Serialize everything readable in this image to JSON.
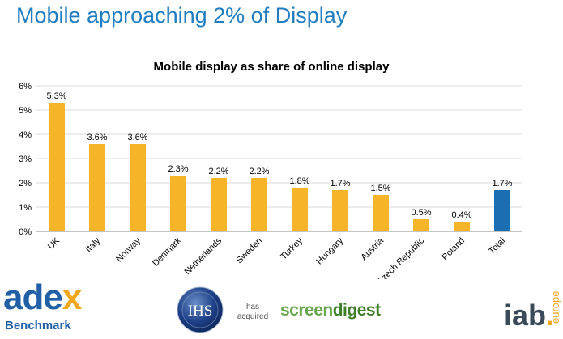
{
  "slide": {
    "title": "Mobile approaching 2% of Display"
  },
  "chart_data": {
    "type": "bar",
    "title": "Mobile display as share of online display",
    "categories": [
      "UK",
      "Italy",
      "Norway",
      "Denmark",
      "Netherlands",
      "Sweden",
      "Turkey",
      "Hungary",
      "Austria",
      "Czech Republic",
      "Poland",
      "Total"
    ],
    "values": [
      5.3,
      3.6,
      3.6,
      2.3,
      2.2,
      2.2,
      1.8,
      1.7,
      1.5,
      0.5,
      0.4,
      1.7
    ],
    "data_labels": [
      "5.3%",
      "3.6%",
      "3.6%",
      "2.3%",
      "2.2%",
      "2.2%",
      "1.8%",
      "1.7%",
      "1.5%",
      "0.5%",
      "0.4%",
      "1.7%"
    ],
    "yticks": [
      0,
      1,
      2,
      3,
      4,
      5,
      6
    ],
    "ytick_labels": [
      "0%",
      "1%",
      "2%",
      "3%",
      "4%",
      "5%",
      "6%"
    ],
    "ylim": [
      0,
      6
    ],
    "xlabel": "",
    "ylabel": "",
    "grid": true,
    "colors": {
      "bar": "#f6b428",
      "total_bar": "#1c6eb3",
      "grid": "#d9d9d9",
      "axis": "#888888",
      "text": "#000000"
    },
    "highlight_category": "Total"
  },
  "footer": {
    "adex": {
      "word_a": "ade",
      "word_b": "x",
      "subtitle": "Benchmark"
    },
    "ihs": {
      "text": "IHS"
    },
    "acquired": {
      "line1": "has",
      "line2": "acquired"
    },
    "screendigest": {
      "part_a": "screen",
      "part_b": "digest"
    },
    "iab": {
      "word": "iab",
      "dot": ".",
      "region": "europe"
    }
  }
}
